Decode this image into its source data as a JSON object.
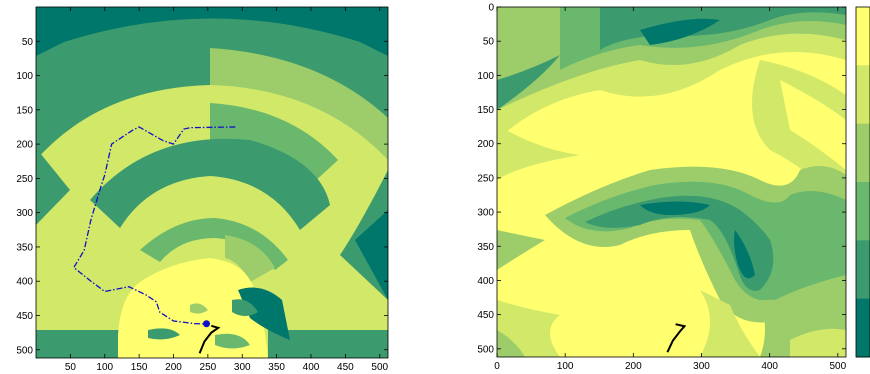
{
  "chart_data": [
    {
      "type": "heatmap",
      "title": "",
      "xlabel": "",
      "ylabel": "",
      "xlim": [
        0,
        512
      ],
      "ylim": [
        0,
        512
      ],
      "y_reversed": true,
      "x_ticks": [
        50,
        100,
        150,
        200,
        250,
        300,
        350,
        400,
        450,
        500
      ],
      "y_ticks": [
        50,
        100,
        150,
        200,
        250,
        300,
        350,
        400,
        450,
        500
      ],
      "colormap": [
        "#00776b",
        "#3c9b6e",
        "#6ab86d",
        "#9dcd6b",
        "#d2e869",
        "#ffff70"
      ],
      "path_dashdot": [
        [
          290,
          175
        ],
        [
          225,
          176
        ],
        [
          215,
          178
        ],
        [
          200,
          200
        ],
        [
          185,
          195
        ],
        [
          150,
          175
        ],
        [
          140,
          180
        ],
        [
          110,
          200
        ],
        [
          100,
          245
        ],
        [
          95,
          260
        ],
        [
          80,
          310
        ],
        [
          70,
          355
        ],
        [
          55,
          380
        ],
        [
          80,
          400
        ],
        [
          100,
          415
        ],
        [
          135,
          408
        ],
        [
          160,
          420
        ],
        [
          175,
          430
        ],
        [
          180,
          445
        ],
        [
          200,
          458
        ],
        [
          232,
          462
        ],
        [
          248,
          462
        ]
      ],
      "path_solid": [
        [
          238,
          505
        ],
        [
          245,
          488
        ],
        [
          255,
          475
        ],
        [
          265,
          468
        ],
        [
          255,
          465
        ]
      ],
      "marker": [
        248,
        462
      ]
    },
    {
      "type": "heatmap",
      "title": "",
      "xlabel": "",
      "ylabel": "",
      "xlim": [
        0,
        512
      ],
      "ylim": [
        0,
        512
      ],
      "y_reversed": true,
      "x_ticks": [
        0,
        100,
        200,
        300,
        400,
        500
      ],
      "y_ticks": [
        0,
        50,
        100,
        150,
        200,
        250,
        300,
        350,
        400,
        450,
        500
      ],
      "colorbar_levels": 6,
      "colormap": [
        "#00776b",
        "#3c9b6e",
        "#6ab86d",
        "#9dcd6b",
        "#d2e869",
        "#ffff70"
      ],
      "path_solid": [
        [
          250,
          505
        ],
        [
          258,
          488
        ],
        [
          268,
          475
        ],
        [
          275,
          467
        ],
        [
          262,
          464
        ]
      ]
    }
  ]
}
